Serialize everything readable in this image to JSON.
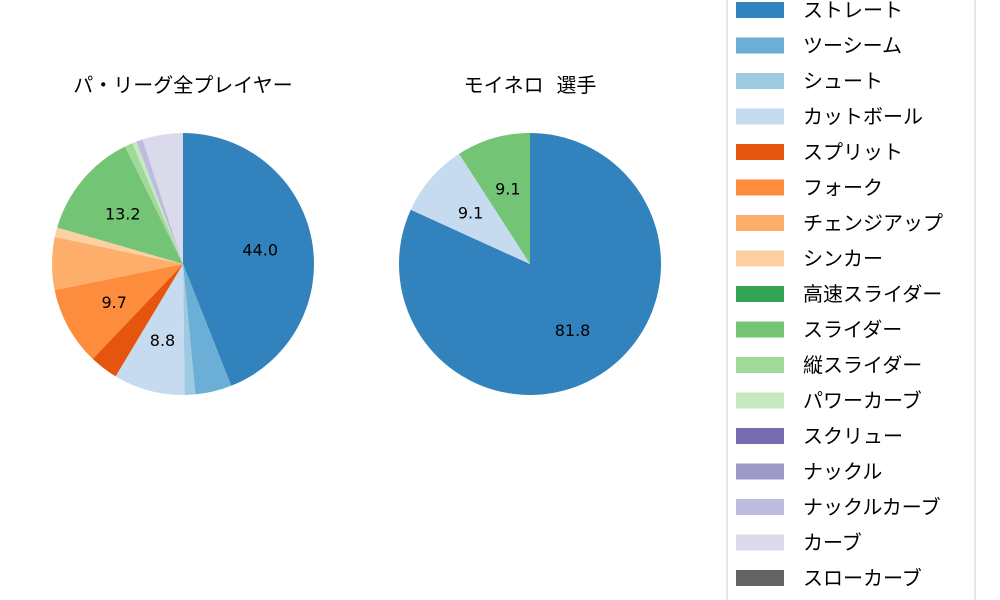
{
  "chart_data": [
    {
      "type": "pie",
      "title": "パ・リーグ全プレイヤー",
      "categories": [
        "ストレート",
        "ツーシーム",
        "シュート",
        "カットボール",
        "スプリット",
        "フォーク",
        "チェンジアップ",
        "シンカー",
        "高速スライダー",
        "スライダー",
        "縦スライダー",
        "パワーカーブ",
        "スクリュー",
        "ナックル",
        "ナックルカーブ",
        "カーブ",
        "スローカーブ"
      ],
      "values": [
        44.0,
        4.5,
        1.3,
        8.8,
        3.5,
        9.7,
        6.5,
        1.2,
        0,
        13.2,
        1.0,
        0.5,
        0,
        0,
        0.8,
        5.0,
        0
      ],
      "labels": [
        "44.0",
        "",
        "",
        "8.8",
        "",
        "9.7",
        "",
        "",
        "",
        "13.2",
        "",
        "",
        "",
        "",
        "",
        "",
        ""
      ],
      "start_angle_deg": 90,
      "direction": "clockwise"
    },
    {
      "type": "pie",
      "title": "モイネロ  選手",
      "categories": [
        "ストレート",
        "カットボール",
        "スライダー"
      ],
      "values": [
        81.8,
        9.1,
        9.1
      ],
      "labels": [
        "81.8",
        "9.1",
        "9.1"
      ],
      "start_angle_deg": 90,
      "direction": "clockwise"
    }
  ],
  "legend": {
    "placement": "right",
    "entries": [
      {
        "label": "ストレート",
        "color": "#3182bd"
      },
      {
        "label": "ツーシーム",
        "color": "#6baed6"
      },
      {
        "label": "シュート",
        "color": "#9ecae1"
      },
      {
        "label": "カットボール",
        "color": "#c6dbef"
      },
      {
        "label": "スプリット",
        "color": "#e6550d"
      },
      {
        "label": "フォーク",
        "color": "#fd8d3c"
      },
      {
        "label": "チェンジアップ",
        "color": "#fdae6b"
      },
      {
        "label": "シンカー",
        "color": "#fdd0a2"
      },
      {
        "label": "高速スライダー",
        "color": "#31a354"
      },
      {
        "label": "スライダー",
        "color": "#74c476"
      },
      {
        "label": "縦スライダー",
        "color": "#a1d99b"
      },
      {
        "label": "パワーカーブ",
        "color": "#c7e9c0"
      },
      {
        "label": "スクリュー",
        "color": "#756bb1"
      },
      {
        "label": "ナックル",
        "color": "#9e9ac8"
      },
      {
        "label": "ナックルカーブ",
        "color": "#bcbddc"
      },
      {
        "label": "カーブ",
        "color": "#dadaeb"
      },
      {
        "label": "スローカーブ",
        "color": "#636363"
      }
    ]
  }
}
